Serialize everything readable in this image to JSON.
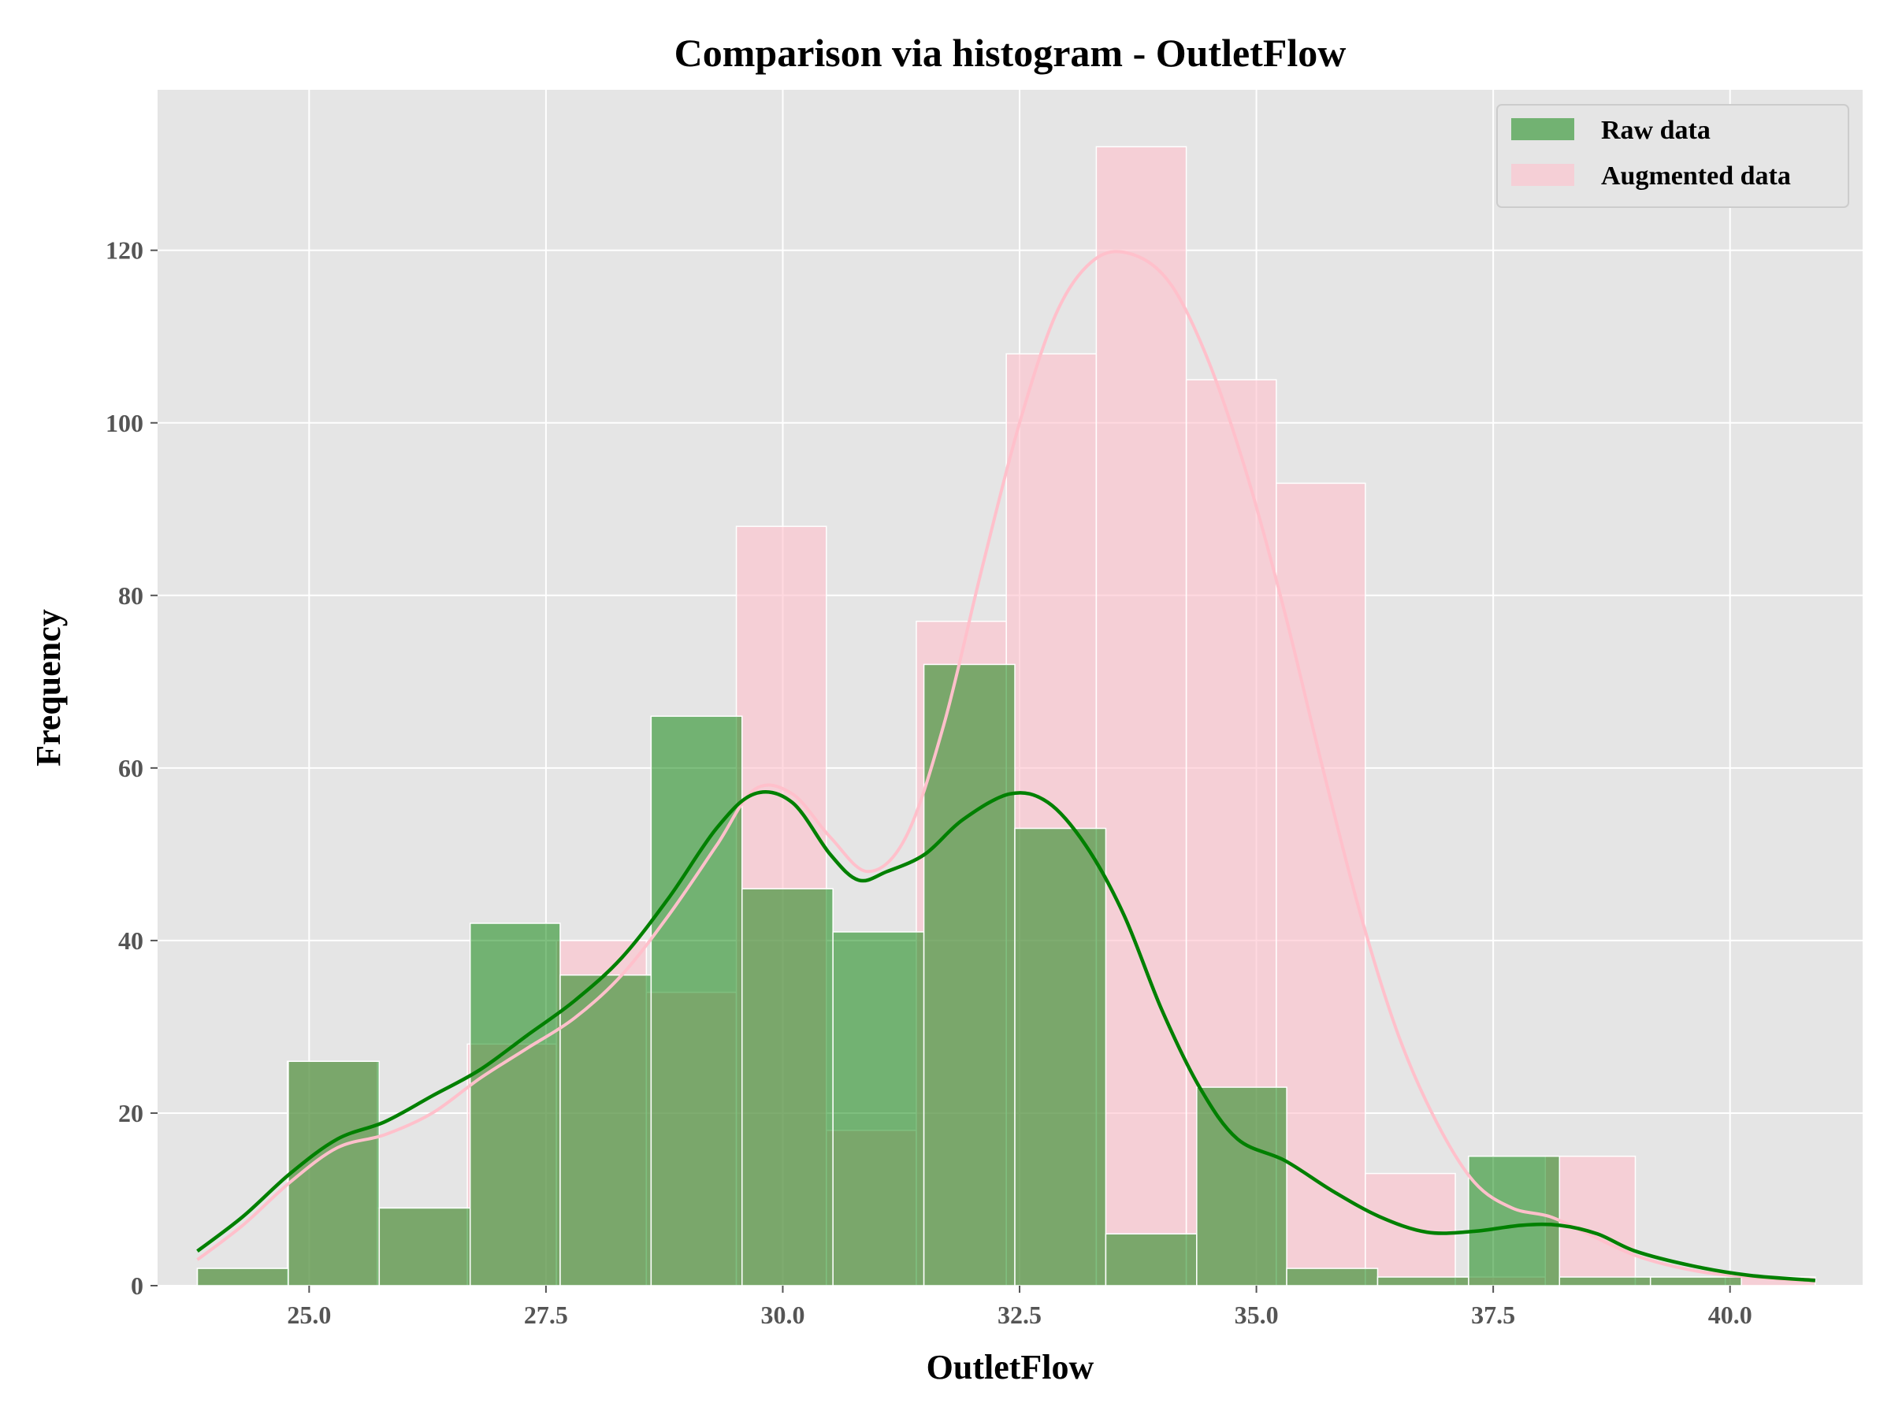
{
  "chart_data": {
    "type": "bar",
    "title": "Comparison via histogram - OutletFlow",
    "xlabel": "OutletFlow",
    "ylabel": "Frequency",
    "xlim": [
      23.4,
      41.4
    ],
    "ylim": [
      0,
      138.6
    ],
    "x_ticks": [
      25.0,
      27.5,
      30.0,
      32.5,
      35.0,
      37.5,
      40.0
    ],
    "x_tick_labels": [
      "25.0",
      "27.5",
      "30.0",
      "32.5",
      "35.0",
      "37.5",
      "40.0"
    ],
    "y_ticks": [
      0,
      20,
      40,
      60,
      80,
      100,
      120
    ],
    "y_tick_labels": [
      "0",
      "20",
      "40",
      "60",
      "80",
      "100",
      "120"
    ],
    "grid": true,
    "legend_position": "top-right",
    "series": [
      {
        "name": "Raw data",
        "color": "#008000",
        "opacity": 0.5,
        "bin_edges": [
          23.82,
          24.78,
          25.74,
          26.7,
          27.65,
          28.61,
          29.57,
          30.53,
          31.49,
          32.45,
          33.41,
          34.37,
          35.32,
          36.28,
          37.24,
          38.2,
          39.16,
          40.12
        ],
        "values": [
          2,
          26,
          9,
          42,
          36,
          66,
          46,
          41,
          72,
          53,
          6,
          23,
          2,
          1,
          15,
          1,
          1
        ],
        "kde": {
          "x": [
            23.82,
            24.3,
            24.8,
            25.3,
            25.8,
            26.3,
            26.8,
            27.3,
            27.8,
            28.3,
            28.8,
            29.3,
            29.7,
            30.1,
            30.5,
            30.8,
            31.1,
            31.5,
            31.9,
            32.4,
            32.8,
            33.2,
            33.6,
            34.0,
            34.4,
            34.8,
            35.3,
            35.8,
            36.3,
            36.8,
            37.3,
            37.8,
            38.2,
            38.6,
            39.0,
            39.6,
            40.2,
            40.9
          ],
          "y": [
            4,
            8,
            13,
            17,
            19,
            22,
            25,
            29,
            33,
            38,
            45,
            53,
            57,
            56,
            50,
            47,
            48,
            50,
            54,
            57,
            56,
            51,
            43,
            32,
            23,
            17,
            14.5,
            11,
            8,
            6.2,
            6.3,
            7,
            7,
            6,
            4,
            2.3,
            1.2,
            0.6
          ]
        }
      },
      {
        "name": "Augmented data",
        "color": "#FFC0CB",
        "opacity": 0.6,
        "bin_edges": [
          23.82,
          24.77,
          25.72,
          26.67,
          27.61,
          28.56,
          29.51,
          30.46,
          31.41,
          32.36,
          33.31,
          34.26,
          35.21,
          36.15,
          37.1,
          38.05,
          39.0,
          39.95,
          40.9
        ],
        "values": [
          2,
          26,
          9,
          28,
          40,
          34,
          88,
          18,
          77,
          108,
          132,
          105,
          93,
          13,
          1,
          15,
          1,
          1
        ],
        "kde": {
          "x": [
            23.82,
            24.3,
            24.8,
            25.3,
            25.8,
            26.3,
            26.8,
            27.3,
            27.8,
            28.3,
            28.8,
            29.3,
            29.7,
            30.1,
            30.5,
            30.9,
            31.3,
            31.7,
            32.1,
            32.5,
            32.9,
            33.3,
            33.7,
            34.1,
            34.5,
            34.9,
            35.3,
            35.7,
            36.1,
            36.5,
            36.9,
            37.3,
            37.7,
            38.1,
            38.5,
            39.0,
            39.5,
            40.0,
            40.9
          ],
          "y": [
            3,
            7,
            12,
            16,
            17.5,
            20,
            24,
            27.5,
            31,
            36,
            43,
            51,
            57.5,
            57,
            52,
            48,
            52,
            65,
            83,
            100,
            113,
            119,
            119.5,
            116,
            107,
            94,
            78,
            60,
            43,
            29,
            19,
            12,
            9,
            8,
            6,
            3.5,
            2,
            1.2,
            0.5
          ]
        }
      }
    ]
  }
}
